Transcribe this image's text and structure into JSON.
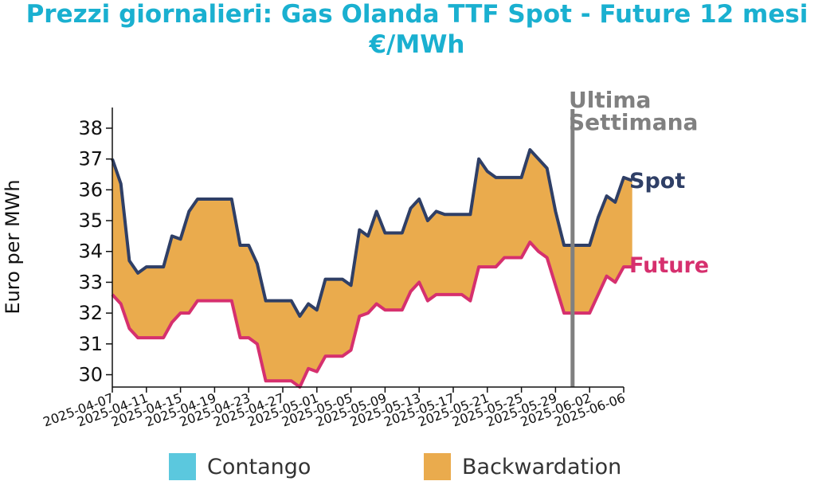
{
  "title": {
    "line1": "Prezzi giornalieri: Gas Olanda TTF Spot - Future 12 mesi",
    "line2": "€/MWh"
  },
  "colors": {
    "title": "#1ab0d0",
    "spot": "#2f3f66",
    "future": "#d6306e",
    "backwardation": "#eaab4d",
    "contango": "#5bc8de",
    "marker": "#808080"
  },
  "annotation": {
    "line1": "Ultima",
    "line2": "Settimana",
    "date": "2025-05-31"
  },
  "legend": {
    "contango": "Contango",
    "backwardation": "Backwardation"
  },
  "chart_data": {
    "type": "area",
    "ylabel": "Euro per MWh",
    "ylim": [
      29.6,
      38.8
    ],
    "yticks": [
      30,
      31,
      32,
      33,
      34,
      35,
      36,
      37,
      38
    ],
    "xlim": [
      "2025-04-07",
      "2025-06-06"
    ],
    "xticks": [
      "2025-04-07",
      "2025-04-11",
      "2025-04-15",
      "2025-04-19",
      "2025-04-23",
      "2025-04-27",
      "2025-05-01",
      "2025-05-05",
      "2025-05-09",
      "2025-05-13",
      "2025-05-17",
      "2025-05-21",
      "2025-05-25",
      "2025-05-29",
      "2025-06-02",
      "2025-06-06"
    ],
    "series": [
      {
        "name": "Spot",
        "points": [
          [
            "2025-04-07",
            37.0
          ],
          [
            "2025-04-08",
            36.2
          ],
          [
            "2025-04-09",
            33.7
          ],
          [
            "2025-04-10",
            33.3
          ],
          [
            "2025-04-11",
            33.5
          ],
          [
            "2025-04-12",
            33.5
          ],
          [
            "2025-04-13",
            33.5
          ],
          [
            "2025-04-14",
            34.5
          ],
          [
            "2025-04-15",
            34.4
          ],
          [
            "2025-04-16",
            35.3
          ],
          [
            "2025-04-17",
            35.7
          ],
          [
            "2025-04-18",
            35.7
          ],
          [
            "2025-04-19",
            35.7
          ],
          [
            "2025-04-20",
            35.7
          ],
          [
            "2025-04-21",
            35.7
          ],
          [
            "2025-04-22",
            34.2
          ],
          [
            "2025-04-23",
            34.2
          ],
          [
            "2025-04-24",
            33.6
          ],
          [
            "2025-04-25",
            32.4
          ],
          [
            "2025-04-26",
            32.4
          ],
          [
            "2025-04-27",
            32.4
          ],
          [
            "2025-04-28",
            32.4
          ],
          [
            "2025-04-29",
            31.9
          ],
          [
            "2025-04-30",
            32.3
          ],
          [
            "2025-05-01",
            32.1
          ],
          [
            "2025-05-02",
            33.1
          ],
          [
            "2025-05-03",
            33.1
          ],
          [
            "2025-05-04",
            33.1
          ],
          [
            "2025-05-05",
            32.9
          ],
          [
            "2025-05-06",
            34.7
          ],
          [
            "2025-05-07",
            34.5
          ],
          [
            "2025-05-08",
            35.3
          ],
          [
            "2025-05-09",
            34.6
          ],
          [
            "2025-05-10",
            34.6
          ],
          [
            "2025-05-11",
            34.6
          ],
          [
            "2025-05-12",
            35.4
          ],
          [
            "2025-05-13",
            35.7
          ],
          [
            "2025-05-14",
            35.0
          ],
          [
            "2025-05-15",
            35.3
          ],
          [
            "2025-05-16",
            35.2
          ],
          [
            "2025-05-17",
            35.2
          ],
          [
            "2025-05-18",
            35.2
          ],
          [
            "2025-05-19",
            35.2
          ],
          [
            "2025-05-20",
            37.0
          ],
          [
            "2025-05-21",
            36.6
          ],
          [
            "2025-05-22",
            36.4
          ],
          [
            "2025-05-23",
            36.4
          ],
          [
            "2025-05-24",
            36.4
          ],
          [
            "2025-05-25",
            36.4
          ],
          [
            "2025-05-26",
            37.3
          ],
          [
            "2025-05-27",
            37.0
          ],
          [
            "2025-05-28",
            36.7
          ],
          [
            "2025-05-29",
            35.3
          ],
          [
            "2025-05-30",
            34.2
          ],
          [
            "2025-05-31",
            34.2
          ],
          [
            "2025-06-01",
            34.2
          ],
          [
            "2025-06-02",
            34.2
          ],
          [
            "2025-06-03",
            35.1
          ],
          [
            "2025-06-04",
            35.8
          ],
          [
            "2025-06-05",
            35.6
          ],
          [
            "2025-06-06",
            36.4
          ],
          [
            "2025-06-07",
            36.3
          ]
        ]
      },
      {
        "name": "Future",
        "points": [
          [
            "2025-04-07",
            32.6
          ],
          [
            "2025-04-08",
            32.3
          ],
          [
            "2025-04-09",
            31.5
          ],
          [
            "2025-04-10",
            31.2
          ],
          [
            "2025-04-11",
            31.2
          ],
          [
            "2025-04-12",
            31.2
          ],
          [
            "2025-04-13",
            31.2
          ],
          [
            "2025-04-14",
            31.7
          ],
          [
            "2025-04-15",
            32.0
          ],
          [
            "2025-04-16",
            32.0
          ],
          [
            "2025-04-17",
            32.4
          ],
          [
            "2025-04-18",
            32.4
          ],
          [
            "2025-04-19",
            32.4
          ],
          [
            "2025-04-20",
            32.4
          ],
          [
            "2025-04-21",
            32.4
          ],
          [
            "2025-04-22",
            31.2
          ],
          [
            "2025-04-23",
            31.2
          ],
          [
            "2025-04-24",
            31.0
          ],
          [
            "2025-04-25",
            29.8
          ],
          [
            "2025-04-26",
            29.8
          ],
          [
            "2025-04-27",
            29.8
          ],
          [
            "2025-04-28",
            29.8
          ],
          [
            "2025-04-29",
            29.6
          ],
          [
            "2025-04-30",
            30.2
          ],
          [
            "2025-05-01",
            30.1
          ],
          [
            "2025-05-02",
            30.6
          ],
          [
            "2025-05-03",
            30.6
          ],
          [
            "2025-05-04",
            30.6
          ],
          [
            "2025-05-05",
            30.8
          ],
          [
            "2025-05-06",
            31.9
          ],
          [
            "2025-05-07",
            32.0
          ],
          [
            "2025-05-08",
            32.3
          ],
          [
            "2025-05-09",
            32.1
          ],
          [
            "2025-05-10",
            32.1
          ],
          [
            "2025-05-11",
            32.1
          ],
          [
            "2025-05-12",
            32.7
          ],
          [
            "2025-05-13",
            33.0
          ],
          [
            "2025-05-14",
            32.4
          ],
          [
            "2025-05-15",
            32.6
          ],
          [
            "2025-05-16",
            32.6
          ],
          [
            "2025-05-17",
            32.6
          ],
          [
            "2025-05-18",
            32.6
          ],
          [
            "2025-05-19",
            32.4
          ],
          [
            "2025-05-20",
            33.5
          ],
          [
            "2025-05-21",
            33.5
          ],
          [
            "2025-05-22",
            33.5
          ],
          [
            "2025-05-23",
            33.8
          ],
          [
            "2025-05-24",
            33.8
          ],
          [
            "2025-05-25",
            33.8
          ],
          [
            "2025-05-26",
            34.3
          ],
          [
            "2025-05-27",
            34.0
          ],
          [
            "2025-05-28",
            33.8
          ],
          [
            "2025-05-29",
            32.9
          ],
          [
            "2025-05-30",
            32.0
          ],
          [
            "2025-05-31",
            32.0
          ],
          [
            "2025-06-01",
            32.0
          ],
          [
            "2025-06-02",
            32.0
          ],
          [
            "2025-06-03",
            32.6
          ],
          [
            "2025-06-04",
            33.2
          ],
          [
            "2025-06-05",
            33.0
          ],
          [
            "2025-06-06",
            33.5
          ],
          [
            "2025-06-07",
            33.5
          ]
        ]
      }
    ]
  }
}
